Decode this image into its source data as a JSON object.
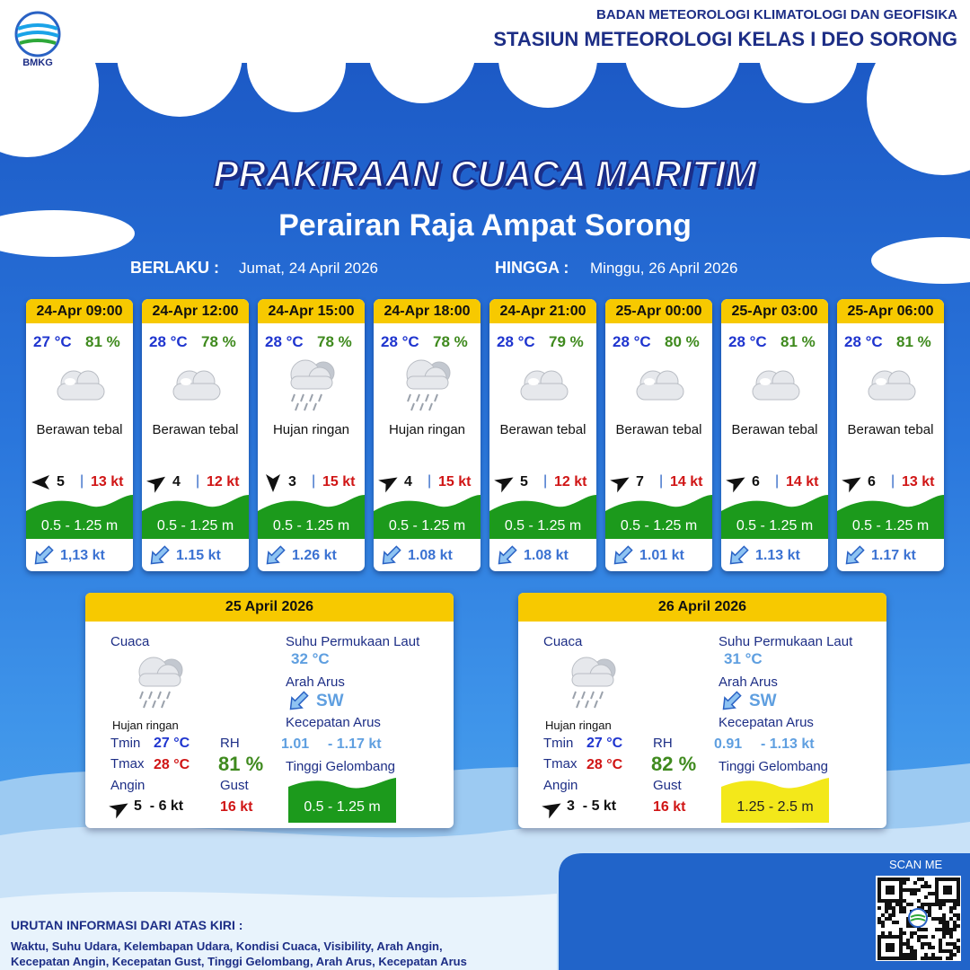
{
  "header": {
    "logo_text": "BMKG",
    "agency": "BADAN METEOROLOGI KLIMATOLOGI DAN GEOFISIKA",
    "station": "STASIUN METEOROLOGI KELAS I DEO SORONG"
  },
  "title": "PRAKIRAAN CUACA MARITIM",
  "subtitle": "Perairan Raja Ampat Sorong",
  "validity": {
    "from_label": "BERLAKU :",
    "from": "Jumat, 24 April 2026",
    "to_label": "HINGGA :",
    "to": "Minggu, 26 April 2026"
  },
  "separator": "|",
  "forecasts": [
    {
      "time": "24-Apr 09:00",
      "temp": "27 °C",
      "rh": "81 %",
      "weather": "Berawan tebal",
      "wind": "5",
      "gust": "13 kt",
      "wave": "0.5 - 1.25 m",
      "current": "1,13 kt"
    },
    {
      "time": "24-Apr 12:00",
      "temp": "28 °C",
      "rh": "78 %",
      "weather": "Berawan tebal",
      "wind": "4",
      "gust": "12 kt",
      "wave": "0.5 - 1.25 m",
      "current": "1.15 kt"
    },
    {
      "time": "24-Apr 15:00",
      "temp": "28 °C",
      "rh": "78 %",
      "weather": "Hujan ringan",
      "wind": "3",
      "gust": "15 kt",
      "wave": "0.5 - 1.25 m",
      "current": "1.26 kt"
    },
    {
      "time": "24-Apr 18:00",
      "temp": "28 °C",
      "rh": "78 %",
      "weather": "Hujan ringan",
      "wind": "4",
      "gust": "15 kt",
      "wave": "0.5 - 1.25 m",
      "current": "1.08 kt"
    },
    {
      "time": "24-Apr 21:00",
      "temp": "28 °C",
      "rh": "79 %",
      "weather": "Berawan tebal",
      "wind": "5",
      "gust": "12 kt",
      "wave": "0.5 - 1.25 m",
      "current": "1.08 kt"
    },
    {
      "time": "25-Apr 00:00",
      "temp": "28 °C",
      "rh": "80 %",
      "weather": "Berawan tebal",
      "wind": "7",
      "gust": "14 kt",
      "wave": "0.5 - 1.25 m",
      "current": "1.01 kt"
    },
    {
      "time": "25-Apr 03:00",
      "temp": "28 °C",
      "rh": "81 %",
      "weather": "Berawan tebal",
      "wind": "6",
      "gust": "14 kt",
      "wave": "0.5 - 1.25 m",
      "current": "1.13 kt"
    },
    {
      "time": "25-Apr 06:00",
      "temp": "28 °C",
      "rh": "81 %",
      "weather": "Berawan tebal",
      "wind": "6",
      "gust": "13 kt",
      "wave": "0.5 - 1.25 m",
      "current": "1.17 kt"
    }
  ],
  "daily": [
    {
      "date": "25 April 2026",
      "weather_label": "Cuaca",
      "weather": "Hujan ringan",
      "tmin_label": "Tmin",
      "tmin": "27 °C",
      "tmax_label": "Tmax",
      "tmax": "28 °C",
      "wind_label": "Angin",
      "wind": "5  - 6 kt",
      "rh_label": "RH",
      "rh": "81 %",
      "gust_label": "Gust",
      "gust": "16 kt",
      "sst_label": "Suhu Permukaan Laut",
      "sst": "32 °C",
      "current_dir_label": "Arah Arus",
      "current_dir": "SW",
      "current_speed_label": "Kecepatan Arus",
      "current_speed_min": "1.01",
      "current_speed_max": "- 1.17 kt",
      "wave_label": "Tinggi Gelombang",
      "wave": "0.5 - 1.25 m",
      "wave_color": "#1c9a1c",
      "wave_text_color": "#ffffff"
    },
    {
      "date": "26 April 2026",
      "weather_label": "Cuaca",
      "weather": "Hujan ringan",
      "tmin_label": "Tmin",
      "tmin": "27 °C",
      "tmax_label": "Tmax",
      "tmax": "28 °C",
      "wind_label": "Angin",
      "wind": "3  - 5 kt",
      "rh_label": "RH",
      "rh": "82 %",
      "gust_label": "Gust",
      "gust": "16 kt",
      "sst_label": "Suhu Permukaan Laut",
      "sst": "31 °C",
      "current_dir_label": "Arah Arus",
      "current_dir": "SW",
      "current_speed_label": "Kecepatan Arus",
      "current_speed_min": "0.91",
      "current_speed_max": "- 1.13 kt",
      "wave_label": "Tinggi Gelombang",
      "wave": "1.25 - 2.5 m",
      "wave_color": "#f3e81a",
      "wave_text_color": "#222222"
    }
  ],
  "footer": {
    "scan_me": "SCAN ME",
    "legend_title": "URUTAN INFORMASI DARI ATAS KIRI :",
    "legend_lines": [
      "Waktu, Suhu Udara, Kelembapan Udara, Kondisi Cuaca, Visibility, Arah Angin,",
      "Kecepatan Angin, Kecepatan Gust, Tinggi Gelombang, Arah Arus, Kecepatan Arus"
    ]
  }
}
